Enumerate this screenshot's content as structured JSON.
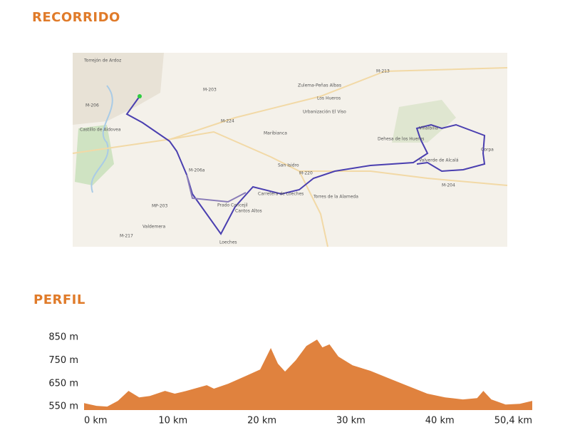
{
  "route_title": "RECORRIDO",
  "map": {
    "labels": [
      "Torrejón de Ardoz",
      "Castillo de Aldovea",
      "Los Hueros",
      "Zulema-Peñas Albas",
      "Urbanización El Viso",
      "Maribianca",
      "San Isidro",
      "Carretera de Loeches",
      "Prado Concejil",
      "Cantos Altos",
      "Loeches",
      "Torres de la Alameda",
      "Dehesa de los Hueros",
      "Villalbilla",
      "Valverde de Alcalá",
      "Corpa",
      "Valdemera",
      "M-203",
      "M-224",
      "M-220",
      "M-204",
      "M-213",
      "M-206",
      "M-206a",
      "MP-203",
      "M-217"
    ]
  },
  "profile_title": "PERFIL",
  "chart_data": {
    "type": "area",
    "color": "#e0823e",
    "x": [
      0,
      1.4,
      2.6,
      3.8,
      5.0,
      6.2,
      7.4,
      9.1,
      10.2,
      11.5,
      13.8,
      14.6,
      16.2,
      18.2,
      19.8,
      21.0,
      21.8,
      22.6,
      23.8,
      25.0,
      26.2,
      26.8,
      27.6,
      28.6,
      30.2,
      32.2,
      34.2,
      36.2,
      38.6,
      40.6,
      42.6,
      44.2,
      44.9,
      45.8,
      47.4,
      49.0,
      50.4
    ],
    "values": [
      565,
      553,
      550,
      575,
      618,
      590,
      596,
      618,
      606,
      618,
      643,
      628,
      649,
      683,
      711,
      804,
      736,
      702,
      751,
      813,
      841,
      807,
      820,
      767,
      729,
      705,
      674,
      643,
      606,
      590,
      581,
      587,
      618,
      581,
      559,
      562,
      575
    ],
    "xlim": [
      0,
      50.4
    ],
    "ylim": [
      535,
      880
    ],
    "xticks": [
      {
        "value": 0,
        "label": "0 km"
      },
      {
        "value": 10,
        "label": "10 km"
      },
      {
        "value": 20,
        "label": "20 km"
      },
      {
        "value": 30,
        "label": "30 km"
      },
      {
        "value": 40,
        "label": "40 km"
      },
      {
        "value": 50.4,
        "label": "50,4 km"
      }
    ],
    "yticks": [
      {
        "value": 550,
        "label": "550 m"
      },
      {
        "value": 650,
        "label": "650 m"
      },
      {
        "value": 750,
        "label": "750 m"
      },
      {
        "value": 850,
        "label": "850 m"
      }
    ]
  }
}
